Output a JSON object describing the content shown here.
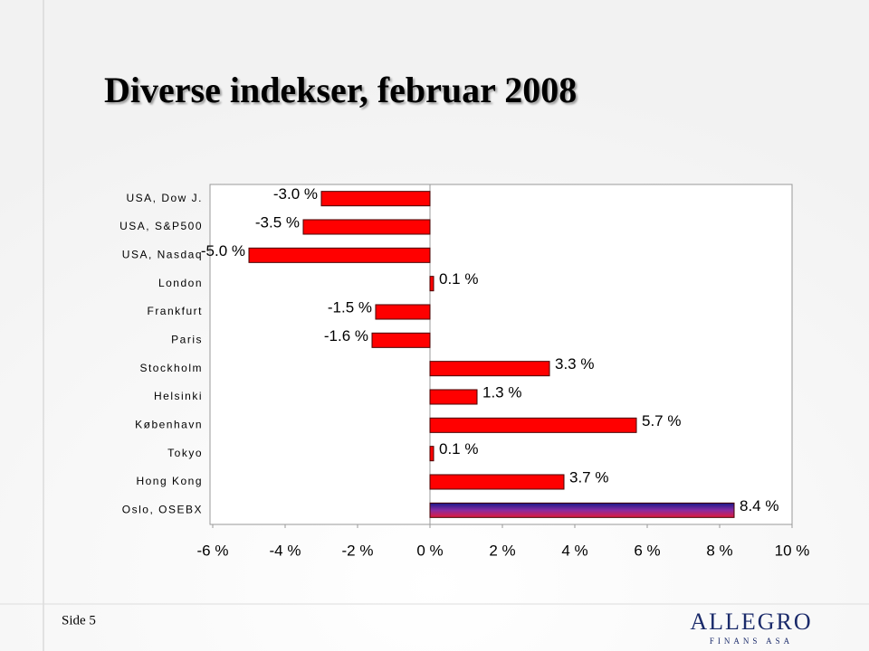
{
  "title": "Diverse indekser, februar 2008",
  "footer": {
    "page": "Side 5",
    "logo": "ALLEGRO",
    "logo_sub": "FINANS ASA"
  },
  "chart_data": {
    "type": "bar",
    "orientation": "horizontal",
    "categories": [
      "USA, Dow J.",
      "USA, S&P500",
      "USA, Nasdaq",
      "London",
      "Frankfurt",
      "Paris",
      "Stockholm",
      "Helsinki",
      "København",
      "Tokyo",
      "Hong Kong",
      "Oslo, OSEBX"
    ],
    "values": [
      -3.0,
      -3.5,
      -5.0,
      0.1,
      -1.5,
      -1.6,
      3.3,
      1.3,
      5.7,
      0.1,
      3.7,
      8.4
    ],
    "value_labels": [
      "-3.0 %",
      "-3.5 %",
      "-5.0 %",
      "0.1 %",
      "-1.5 %",
      "-1.6 %",
      "3.3 %",
      "1.3 %",
      "5.7 %",
      "0.1 %",
      "3.7 %",
      "8.4 %"
    ],
    "colors": [
      "#ff0000",
      "#ff0000",
      "#ff0000",
      "#ff0000",
      "#ff0000",
      "#ff0000",
      "#ff0000",
      "#ff0000",
      "#ff0000",
      "#ff0000",
      "#ff0000",
      "#4a1a9a"
    ],
    "xlim": [
      -6,
      10
    ],
    "xticks": [
      {
        "value": -6,
        "label": "-6 %"
      },
      {
        "value": -4,
        "label": "-4 %"
      },
      {
        "value": -2,
        "label": "-2 %"
      },
      {
        "value": 0,
        "label": "0 %"
      },
      {
        "value": 2,
        "label": "2 %"
      },
      {
        "value": 4,
        "label": "4 %"
      },
      {
        "value": 6,
        "label": "6 %"
      },
      {
        "value": 8,
        "label": "8 %"
      },
      {
        "value": 10,
        "label": "10 %"
      }
    ]
  }
}
